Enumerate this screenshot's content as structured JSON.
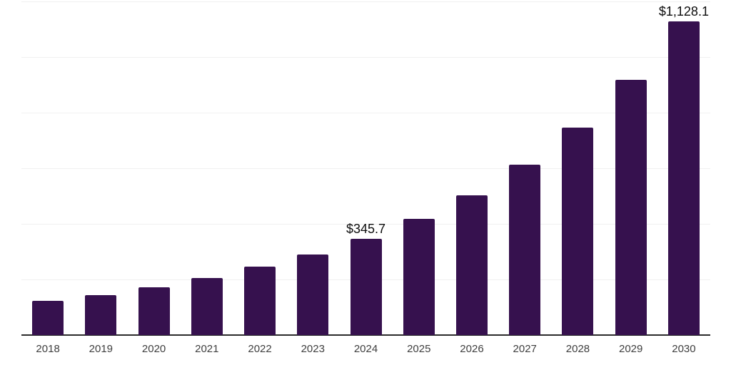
{
  "chart": {
    "background": "#ffffff"
  },
  "chart_data": {
    "type": "bar",
    "title": "",
    "xlabel": "",
    "ylabel": "",
    "categories": [
      "2018",
      "2019",
      "2020",
      "2021",
      "2022",
      "2023",
      "2024",
      "2025",
      "2026",
      "2027",
      "2028",
      "2029",
      "2030"
    ],
    "values": [
      123,
      143,
      172,
      205,
      246,
      290,
      345.7,
      419,
      502,
      612,
      745,
      917,
      1128.1
    ],
    "value_labels": [
      "",
      "",
      "",
      "",
      "",
      "",
      "$345.7",
      "",
      "",
      "",
      "",
      "",
      "$1,128.1"
    ],
    "ylim": [
      0,
      1200
    ],
    "gridline_values": [
      200,
      400,
      600,
      800,
      1000,
      1200
    ],
    "grid": "horizontal",
    "legend_position": "none",
    "colors": {
      "bar": "#36114E",
      "gridline": "#f1f1f1",
      "axis": "#2b2b2b",
      "tick_label": "#3f3f3f",
      "value_label": "#0d0d0d"
    }
  }
}
